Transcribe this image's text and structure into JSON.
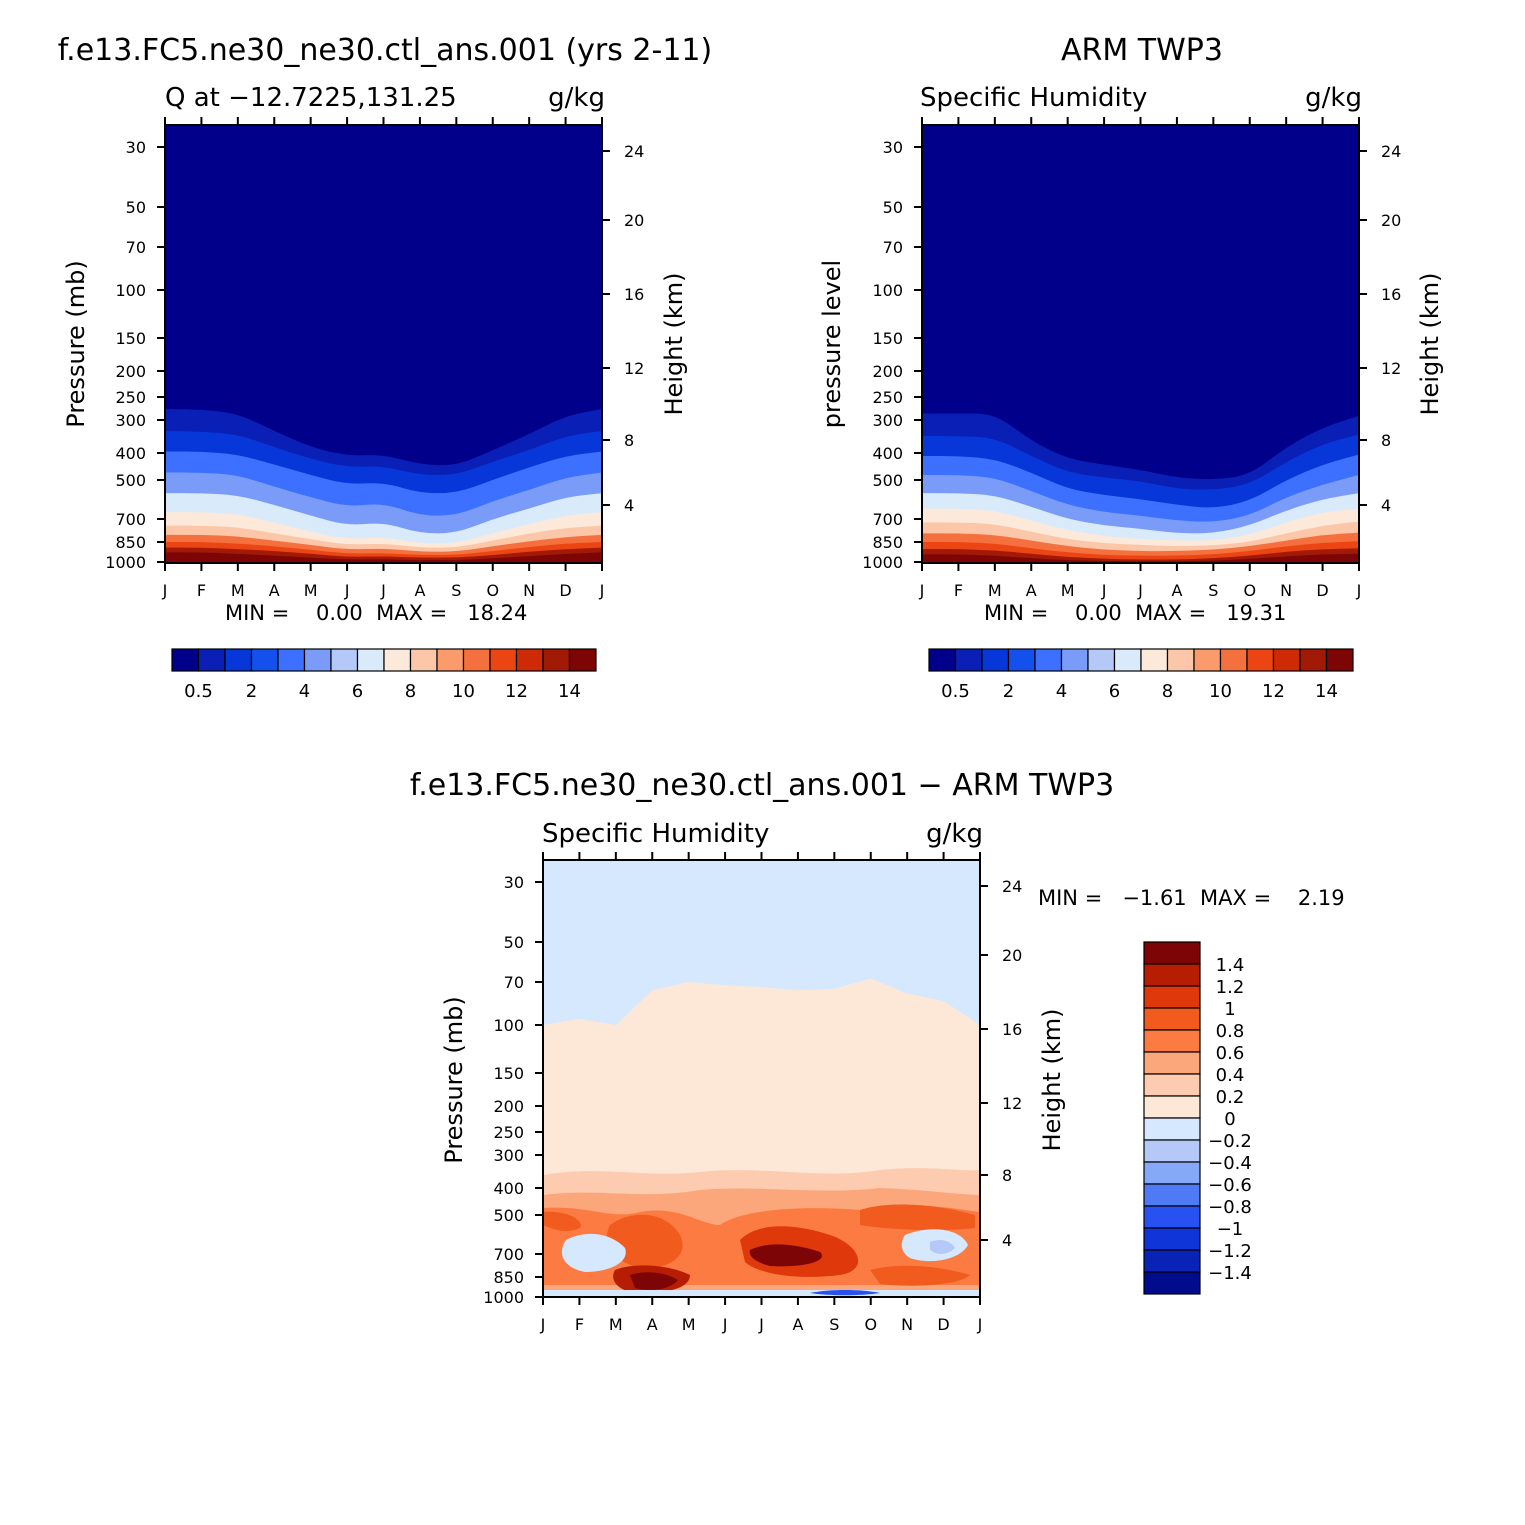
{
  "chart_data": [
    {
      "type": "heatmap",
      "title": "f.e13.FC5.ne30_ne30.ctl_ans.001 (yrs 2-11)",
      "subtitle_left": "Q at −12.7225,131.25",
      "subtitle_right": "g/kg",
      "ylabel": "Pressure (mb)",
      "ylabel_right": "Height (km)",
      "x": [
        "J",
        "F",
        "M",
        "A",
        "M",
        "J",
        "J",
        "A",
        "S",
        "O",
        "N",
        "D",
        "J"
      ],
      "y_ticks": [
        "30",
        "50",
        "70",
        "100",
        "150",
        "200",
        "250",
        "300",
        "400",
        "500",
        "700",
        "850",
        "1000"
      ],
      "y_ticks_right": [
        "24",
        "20",
        "16",
        "12",
        "8",
        "4"
      ],
      "stats": "MIN =    0.00  MAX =   18.24",
      "colorbar_labels": [
        "0.5",
        "2",
        "4",
        "6",
        "8",
        "10",
        "12",
        "14"
      ],
      "boundaries_pressure_mb": [
        [
          275,
          276,
          285,
          330,
          380,
          410,
          405,
          440,
          445,
          390,
          340,
          290,
          275
        ],
        [
          330,
          332,
          340,
          380,
          420,
          450,
          445,
          480,
          480,
          430,
          390,
          345,
          330
        ],
        [
          395,
          395,
          405,
          440,
          480,
          520,
          510,
          560,
          560,
          500,
          450,
          410,
          395
        ],
        [
          470,
          470,
          480,
          530,
          580,
          630,
          610,
          680,
          680,
          600,
          545,
          490,
          470
        ],
        [
          560,
          560,
          570,
          620,
          680,
          740,
          720,
          790,
          790,
          700,
          640,
          580,
          560
        ],
        [
          660,
          660,
          670,
          720,
          780,
          830,
          815,
          860,
          860,
          790,
          730,
          680,
          660
        ],
        [
          740,
          740,
          750,
          790,
          830,
          870,
          860,
          890,
          890,
          840,
          790,
          755,
          740
        ],
        [
          800,
          800,
          810,
          840,
          870,
          905,
          895,
          920,
          920,
          880,
          845,
          815,
          800
        ],
        [
          850,
          850,
          860,
          880,
          905,
          935,
          930,
          945,
          945,
          915,
          885,
          860,
          850
        ],
        [
          890,
          890,
          900,
          915,
          935,
          960,
          955,
          965,
          965,
          945,
          920,
          900,
          890
        ],
        [
          925,
          925,
          935,
          950,
          965,
          980,
          978,
          985,
          985,
          970,
          955,
          935,
          925
        ]
      ]
    },
    {
      "type": "heatmap",
      "title": "ARM TWP3",
      "subtitle_left": "Specific Humidity",
      "subtitle_right": "g/kg",
      "ylabel": "pressure level",
      "ylabel_right": "Height (km)",
      "x": [
        "J",
        "F",
        "M",
        "A",
        "M",
        "J",
        "J",
        "A",
        "S",
        "O",
        "N",
        "D",
        "J"
      ],
      "y_ticks": [
        "30",
        "50",
        "70",
        "100",
        "150",
        "200",
        "250",
        "300",
        "400",
        "500",
        "700",
        "850",
        "1000"
      ],
      "y_ticks_right": [
        "24",
        "20",
        "16",
        "12",
        "8",
        "4"
      ],
      "stats": "MIN =    0.00  MAX =   19.31",
      "colorbar_labels": [
        "0.5",
        "2",
        "4",
        "6",
        "8",
        "10",
        "12",
        "14"
      ],
      "boundaries_pressure_mb": [
        [
          285,
          285,
          285,
          360,
          420,
          440,
          460,
          490,
          500,
          480,
          380,
          320,
          290
        ],
        [
          345,
          345,
          350,
          410,
          470,
          490,
          505,
          540,
          545,
          520,
          430,
          370,
          340
        ],
        [
          410,
          410,
          420,
          470,
          540,
          570,
          590,
          620,
          640,
          600,
          500,
          440,
          405
        ],
        [
          480,
          480,
          490,
          550,
          620,
          660,
          680,
          710,
          720,
          680,
          580,
          520,
          480
        ],
        [
          560,
          560,
          570,
          630,
          700,
          740,
          760,
          790,
          790,
          740,
          650,
          590,
          560
        ],
        [
          640,
          640,
          650,
          710,
          770,
          810,
          830,
          840,
          840,
          800,
          720,
          660,
          640
        ],
        [
          720,
          720,
          730,
          780,
          830,
          860,
          870,
          880,
          875,
          850,
          790,
          740,
          715
        ],
        [
          790,
          790,
          800,
          840,
          880,
          905,
          915,
          915,
          905,
          880,
          840,
          800,
          785
        ],
        [
          850,
          850,
          860,
          895,
          925,
          945,
          950,
          950,
          940,
          915,
          880,
          855,
          845
        ],
        [
          900,
          900,
          910,
          935,
          960,
          975,
          980,
          980,
          970,
          950,
          920,
          900,
          895
        ],
        [
          940,
          940,
          950,
          970,
          985,
          992,
          995,
          995,
          988,
          975,
          955,
          940,
          935
        ]
      ]
    },
    {
      "type": "heatmap",
      "title": "f.e13.FC5.ne30_ne30.ctl_ans.001 − ARM TWP3",
      "subtitle_left": "Specific Humidity",
      "subtitle_right": "g/kg",
      "ylabel": "Pressure (mb)",
      "ylabel_right": "Height (km)",
      "x": [
        "J",
        "F",
        "M",
        "A",
        "M",
        "J",
        "J",
        "A",
        "S",
        "O",
        "N",
        "D",
        "J"
      ],
      "y_ticks": [
        "30",
        "50",
        "70",
        "100",
        "150",
        "200",
        "250",
        "300",
        "400",
        "500",
        "700",
        "850",
        "1000"
      ],
      "y_ticks_right": [
        "24",
        "20",
        "16",
        "12",
        "8",
        "4"
      ],
      "stats": "MIN =   −1.61  MAX =    2.19",
      "colorbar_labels": [
        "1.4",
        "1.2",
        "1",
        "0.8",
        "0.6",
        "0.4",
        "0.2",
        "0",
        "−0.2",
        "−0.4",
        "−0.6",
        "−0.8",
        "−1",
        "−1.2",
        "−1.4"
      ],
      "top_boundary_pressure_mb": [
        100,
        95,
        100,
        75,
        70,
        72,
        73,
        75,
        74,
        68,
        77,
        82,
        100
      ]
    }
  ],
  "colors": {
    "seq": [
      "#00008b",
      "#0a1fb5",
      "#0737d8",
      "#1450ec",
      "#3d70ff",
      "#7a9cf8",
      "#b4c9f8",
      "#d9eafb",
      "#fde9d9",
      "#fcc7a8",
      "#fb9a6b",
      "#f5703f",
      "#ec4514",
      "#ce2a05",
      "#a11a05",
      "#7e0505"
    ],
    "diff": [
      "#7e0505",
      "#b61d03",
      "#de380b",
      "#f15b1d",
      "#fc7b43",
      "#fca67c",
      "#fdcbb0",
      "#fde8d8",
      "#d6e8fd",
      "#b4c9f8",
      "#85a9f6",
      "#4f7af5",
      "#2751f0",
      "#0f34d8",
      "#0823b5",
      "#000c8c"
    ]
  }
}
